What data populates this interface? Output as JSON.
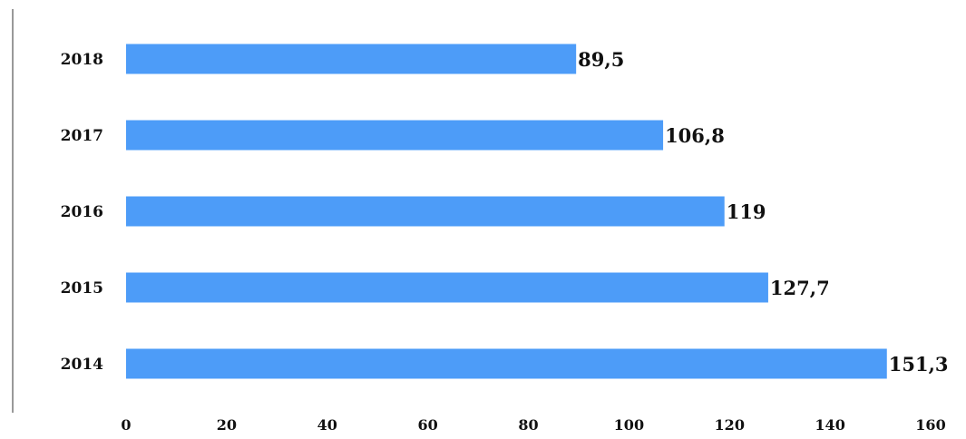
{
  "chart_data": {
    "type": "bar",
    "orientation": "horizontal",
    "categories": [
      "2018",
      "2017",
      "2016",
      "2015",
      "2014"
    ],
    "values": [
      89.5,
      106.8,
      119,
      127.7,
      151.3
    ],
    "value_labels": [
      "89,5",
      "106,8",
      "119",
      "127,7",
      "151,3"
    ],
    "xlim": [
      0,
      160
    ],
    "xticks": [
      0,
      20,
      40,
      60,
      80,
      100,
      120,
      140,
      160
    ],
    "title": "",
    "xlabel": "",
    "ylabel": "",
    "grid": false,
    "legend": "none",
    "bar_color": "#4d9cf8"
  }
}
